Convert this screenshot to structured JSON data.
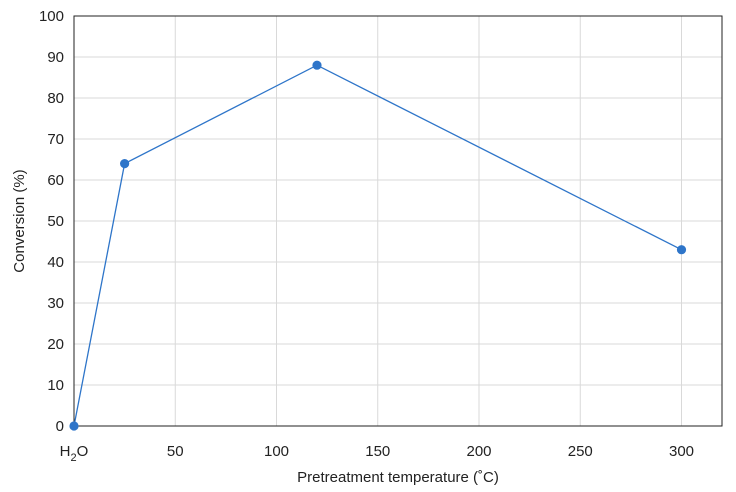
{
  "chart_data": {
    "type": "line",
    "title": "",
    "xlabel": "Pretreatment temperature (˚C)",
    "ylabel": "Conversion (%)",
    "xlim": [
      0,
      320
    ],
    "ylim": [
      0,
      100
    ],
    "grid": true,
    "x_ticks": [
      50,
      100,
      150,
      200,
      250,
      300
    ],
    "y_ticks": [
      0,
      10,
      20,
      30,
      40,
      50,
      60,
      70,
      80,
      90,
      100
    ],
    "x_special_label": {
      "x": 0,
      "main": "H",
      "sub": "2",
      "tail": "O"
    },
    "series": [
      {
        "color": "#2e75c9",
        "x": [
          0,
          25,
          120,
          300
        ],
        "y": [
          0,
          64,
          88,
          43
        ]
      }
    ]
  }
}
